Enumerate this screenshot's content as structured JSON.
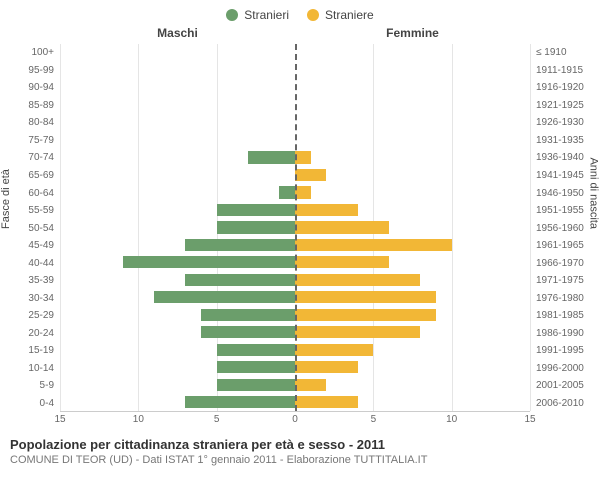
{
  "legend": {
    "male": {
      "label": "Stranieri",
      "color": "#6b9e6b"
    },
    "female": {
      "label": "Straniere",
      "color": "#f2b736"
    }
  },
  "headers": {
    "male": "Maschi",
    "female": "Femmine"
  },
  "y_axis_left_title": "Fasce di età",
  "y_axis_right_title": "Anni di nascita",
  "x_axis": {
    "min": -15,
    "max": 15,
    "ticks": [
      15,
      10,
      5,
      0,
      5,
      10,
      15
    ],
    "tick_positions_pct": [
      0,
      16.67,
      33.33,
      50,
      66.67,
      83.33,
      100
    ]
  },
  "rows": [
    {
      "age": "100+",
      "birth": "≤ 1910",
      "m": 0,
      "f": 0
    },
    {
      "age": "95-99",
      "birth": "1911-1915",
      "m": 0,
      "f": 0
    },
    {
      "age": "90-94",
      "birth": "1916-1920",
      "m": 0,
      "f": 0
    },
    {
      "age": "85-89",
      "birth": "1921-1925",
      "m": 0,
      "f": 0
    },
    {
      "age": "80-84",
      "birth": "1926-1930",
      "m": 0,
      "f": 0
    },
    {
      "age": "75-79",
      "birth": "1931-1935",
      "m": 0,
      "f": 0
    },
    {
      "age": "70-74",
      "birth": "1936-1940",
      "m": 3,
      "f": 1
    },
    {
      "age": "65-69",
      "birth": "1941-1945",
      "m": 0,
      "f": 2
    },
    {
      "age": "60-64",
      "birth": "1946-1950",
      "m": 1,
      "f": 1
    },
    {
      "age": "55-59",
      "birth": "1951-1955",
      "m": 5,
      "f": 4
    },
    {
      "age": "50-54",
      "birth": "1956-1960",
      "m": 5,
      "f": 6
    },
    {
      "age": "45-49",
      "birth": "1961-1965",
      "m": 7,
      "f": 10
    },
    {
      "age": "40-44",
      "birth": "1966-1970",
      "m": 11,
      "f": 6
    },
    {
      "age": "35-39",
      "birth": "1971-1975",
      "m": 7,
      "f": 8
    },
    {
      "age": "30-34",
      "birth": "1976-1980",
      "m": 9,
      "f": 9
    },
    {
      "age": "25-29",
      "birth": "1981-1985",
      "m": 6,
      "f": 9
    },
    {
      "age": "20-24",
      "birth": "1986-1990",
      "m": 6,
      "f": 8
    },
    {
      "age": "15-19",
      "birth": "1991-1995",
      "m": 5,
      "f": 5
    },
    {
      "age": "10-14",
      "birth": "1996-2000",
      "m": 5,
      "f": 4
    },
    {
      "age": "5-9",
      "birth": "2001-2005",
      "m": 5,
      "f": 2
    },
    {
      "age": "0-4",
      "birth": "2006-2010",
      "m": 7,
      "f": 4
    }
  ],
  "max_abs": 15,
  "colors": {
    "grid": "#e5e5e5",
    "center_dash": "#666666",
    "bg": "#ffffff",
    "text": "#444444"
  },
  "footer": {
    "title": "Popolazione per cittadinanza straniera per età e sesso - 2011",
    "subtitle": "COMUNE DI TEOR (UD) - Dati ISTAT 1° gennaio 2011 - Elaborazione TUTTITALIA.IT"
  }
}
